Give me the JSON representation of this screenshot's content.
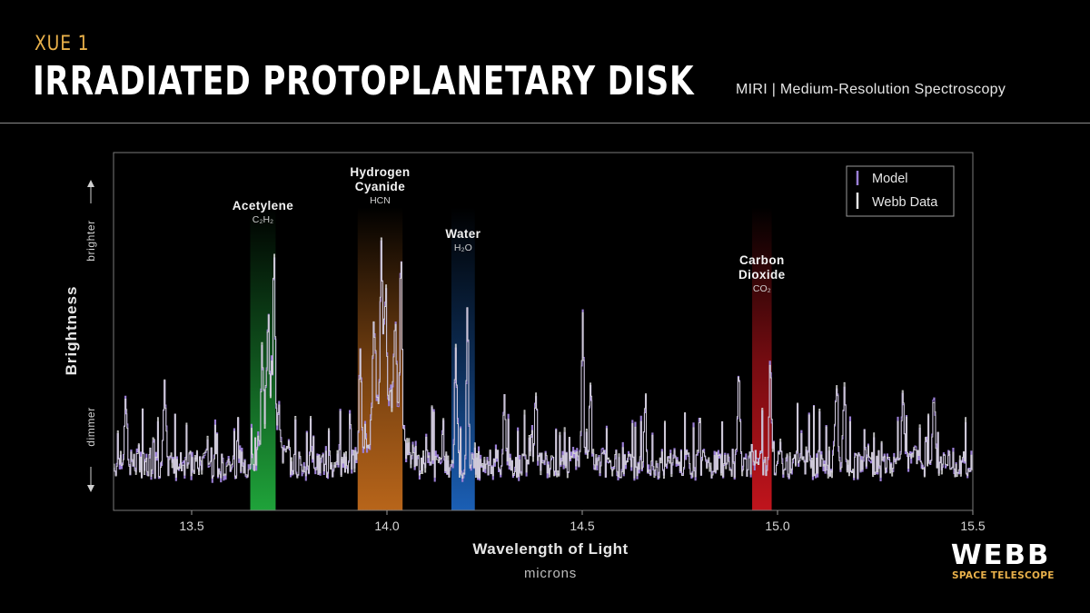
{
  "header": {
    "kicker": "XUE 1",
    "title": "IRRADIATED PROTOPLANETARY DISK",
    "instrument": "MIRI | Medium-Resolution Spectroscopy"
  },
  "logo": {
    "word": "WEBB",
    "sub": "SPACE TELESCOPE"
  },
  "colors": {
    "model": "#9b7fd6",
    "data": "#d8d8d8",
    "accent": "#e8b04a",
    "acetylene": "#1fa33a",
    "hcn": "#b8651a",
    "water": "#1b5fb5",
    "co2": "#c0141c"
  },
  "chart_data": {
    "type": "line",
    "xlabel": "Wavelength of Light",
    "xlabel_sub": "microns",
    "ylabel": "Brightness",
    "ylabel_high": "brighter",
    "ylabel_low": "dimmer",
    "xlim": [
      13.3,
      15.5
    ],
    "ylim": [
      0,
      1
    ],
    "y_unit": "relative brightness (no numeric scale shown)",
    "xticks": [
      "13.5",
      "14.0",
      "14.5",
      "15.0",
      "15.5"
    ],
    "legend": {
      "position": "top-right",
      "items": [
        "Model",
        "Webb Data"
      ]
    },
    "series": [
      {
        "name": "Model",
        "color": "#9b7fd6"
      },
      {
        "name": "Webb Data",
        "color": "#d8d8d8"
      }
    ],
    "peaks": [
      {
        "x": 13.71,
        "y": 0.75
      },
      {
        "x": 13.695,
        "y": 0.56
      },
      {
        "x": 13.68,
        "y": 0.45
      },
      {
        "x": 13.93,
        "y": 0.46
      },
      {
        "x": 13.965,
        "y": 0.52
      },
      {
        "x": 13.985,
        "y": 0.75
      },
      {
        "x": 13.995,
        "y": 0.57
      },
      {
        "x": 14.02,
        "y": 0.56
      },
      {
        "x": 14.035,
        "y": 0.69
      },
      {
        "x": 14.175,
        "y": 0.5
      },
      {
        "x": 14.205,
        "y": 0.54
      },
      {
        "x": 14.3,
        "y": 0.34
      },
      {
        "x": 14.38,
        "y": 0.33
      },
      {
        "x": 14.5,
        "y": 0.52
      },
      {
        "x": 14.52,
        "y": 0.34
      },
      {
        "x": 14.66,
        "y": 0.32
      },
      {
        "x": 14.9,
        "y": 0.41
      },
      {
        "x": 14.98,
        "y": 0.4
      },
      {
        "x": 15.15,
        "y": 0.38
      },
      {
        "x": 15.17,
        "y": 0.34
      },
      {
        "x": 15.32,
        "y": 0.36
      },
      {
        "x": 15.4,
        "y": 0.32
      },
      {
        "x": 13.33,
        "y": 0.33
      },
      {
        "x": 13.43,
        "y": 0.33
      }
    ],
    "bands": [
      {
        "name": "Acetylene",
        "formula": "C₂H₂",
        "range": [
          13.65,
          13.715
        ],
        "color": "#1fa33a"
      },
      {
        "name": "Hydrogen\nCyanide",
        "formula": "HCN",
        "range": [
          13.925,
          14.04
        ],
        "color": "#b8651a"
      },
      {
        "name": "Water",
        "formula": "H₂O",
        "range": [
          14.165,
          14.225
        ],
        "color": "#1b5fb5"
      },
      {
        "name": "Carbon\nDioxide",
        "formula": "CO₂",
        "range": [
          14.935,
          14.985
        ],
        "color": "#c0141c"
      }
    ]
  }
}
